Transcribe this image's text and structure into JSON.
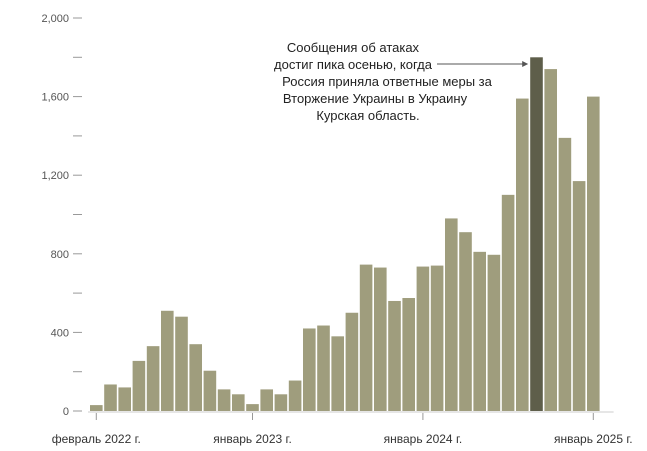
{
  "chart_data": {
    "type": "bar",
    "title": "",
    "xlabel": "",
    "ylabel": "",
    "ylim": [
      0,
      2000
    ],
    "yticks": [
      {
        "value": 0,
        "label": "0"
      },
      {
        "value": 200,
        "label": ""
      },
      {
        "value": 400,
        "label": "400"
      },
      {
        "value": 600,
        "label": ""
      },
      {
        "value": 800,
        "label": "800"
      },
      {
        "value": 1000,
        "label": ""
      },
      {
        "value": 1200,
        "label": "1,200"
      },
      {
        "value": 1400,
        "label": ""
      },
      {
        "value": 1600,
        "label": "1,600"
      },
      {
        "value": 1800,
        "label": ""
      },
      {
        "value": 2000,
        "label": "2,000"
      }
    ],
    "values": [
      30,
      135,
      120,
      255,
      330,
      510,
      480,
      340,
      205,
      110,
      85,
      35,
      110,
      85,
      155,
      420,
      435,
      380,
      500,
      745,
      730,
      560,
      575,
      735,
      740,
      980,
      910,
      810,
      795,
      1100,
      1590,
      1800,
      1740,
      1390,
      1170,
      1600
    ],
    "highlight_index": 31,
    "colors": {
      "bar": "#9f9d7d",
      "highlight": "#5e5e4a"
    },
    "x_ticks": [
      {
        "index": 0,
        "label": "февраль 2022 г."
      },
      {
        "index": 11,
        "label": "январь 2023 г."
      },
      {
        "index": 23,
        "label": "январь 2024 г."
      },
      {
        "index": 35,
        "label": "январь 2025 г."
      }
    ],
    "annotation": {
      "lines": [
        "Сообщения об атаках",
        "достиг пика осенью, когда",
        "Россия приняла ответные меры за",
        "Вторжение Украины в Украину",
        "Курская область."
      ],
      "target_index": 31
    }
  }
}
